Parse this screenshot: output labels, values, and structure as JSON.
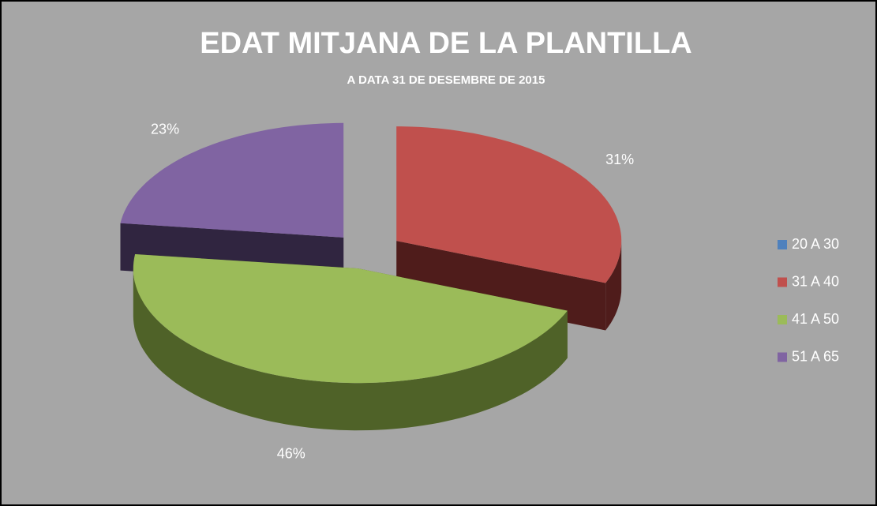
{
  "chart_data": {
    "type": "pie",
    "title": "EDAT MITJANA DE LA PLANTILLA",
    "subtitle": "A DATA 31 DE DESEMBRE DE 2015",
    "categories": [
      "20 A 30",
      "31 A 40",
      "41 A 50",
      "51 A 65"
    ],
    "values": [
      0,
      31,
      46,
      23
    ],
    "value_labels": [
      null,
      "31%",
      "46%",
      "23%"
    ],
    "colors": [
      "#4f81bd",
      "#c0504d",
      "#9bbb59",
      "#8064a2"
    ],
    "side_colors": [
      "#2c4a6e",
      "#4f1c1b",
      "#4f6228",
      "#302540"
    ],
    "legend": "right",
    "exploded": true
  }
}
